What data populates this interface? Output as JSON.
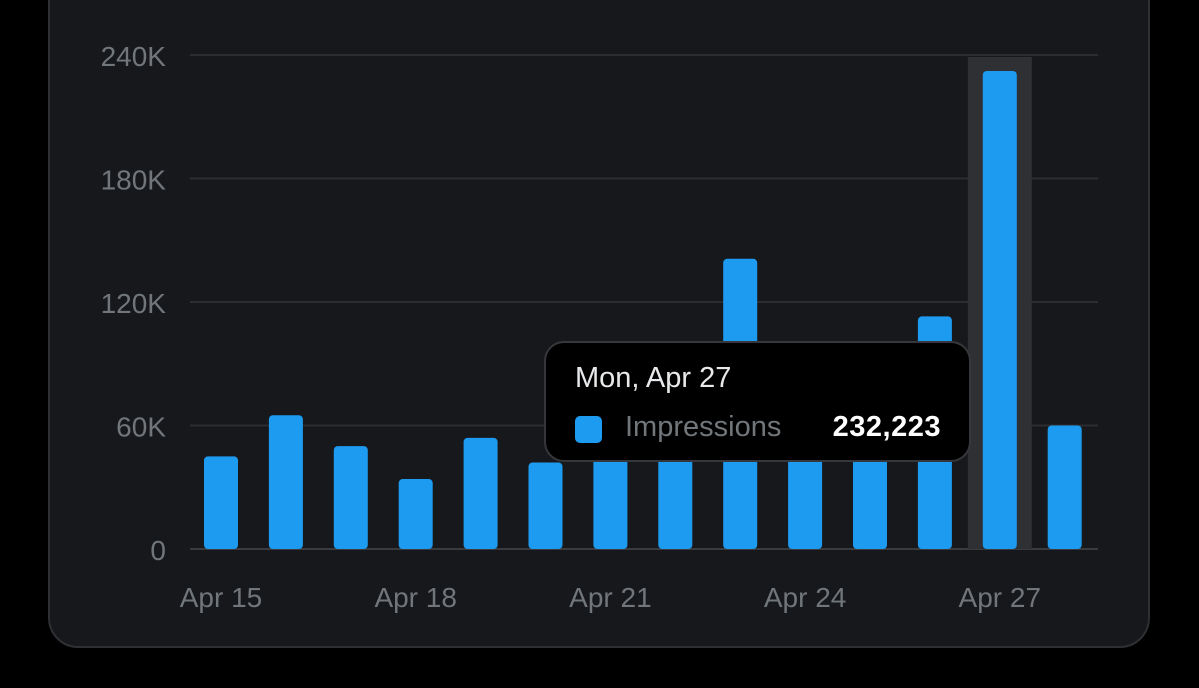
{
  "chart_data": {
    "type": "bar",
    "categories": [
      "Apr 15",
      "Apr 16",
      "Apr 17",
      "Apr 18",
      "Apr 19",
      "Apr 20",
      "Apr 21",
      "Apr 22",
      "Apr 23",
      "Apr 24",
      "Apr 25",
      "Apr 26",
      "Apr 27",
      "Apr 28"
    ],
    "series": [
      {
        "name": "Impressions",
        "values": [
          45000,
          65000,
          50000,
          34000,
          54000,
          42000,
          44000,
          48000,
          141000,
          44000,
          46000,
          113000,
          232223,
          60000
        ]
      }
    ],
    "y_ticks": [
      "0",
      "60K",
      "120K",
      "180K",
      "240K"
    ],
    "y_tick_values": [
      0,
      60000,
      120000,
      180000,
      240000
    ],
    "x_tick_labels": [
      "Apr 15",
      "Apr 18",
      "Apr 21",
      "Apr 24",
      "Apr 27"
    ],
    "ylim": [
      0,
      240000
    ],
    "grid": "horizontal",
    "highlighted_index": 12,
    "bar_color": "#1d9bf0",
    "highlight_band_color": "#2f3033"
  },
  "tooltip": {
    "date": "Mon, Apr 27",
    "series_label": "Impressions",
    "value": "232,223",
    "swatch_color": "#1d9bf0"
  }
}
